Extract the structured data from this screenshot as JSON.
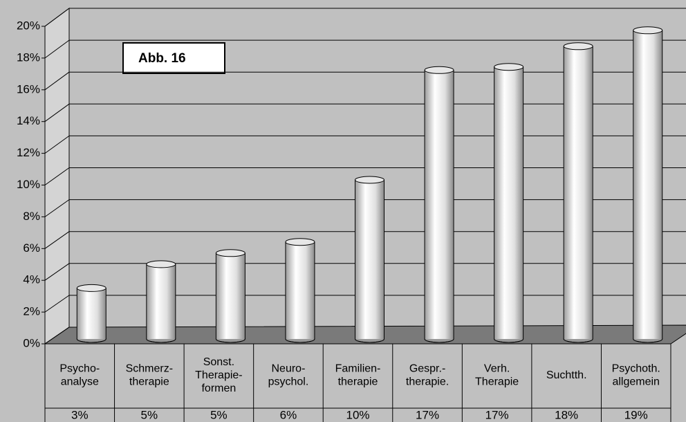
{
  "chart_data": {
    "type": "bar",
    "annotation": "Abb. 16",
    "categories": [
      [
        "Psycho-",
        "analyse"
      ],
      [
        "Schmerz-",
        "therapie"
      ],
      [
        "Sonst.",
        "Therapie-",
        "formen"
      ],
      [
        "Neuro-",
        "psychol."
      ],
      [
        "Familien-",
        "therapie"
      ],
      [
        "Gespr.-",
        "therapie."
      ],
      [
        "Verh.",
        "Therapie"
      ],
      [
        "Suchtth."
      ],
      [
        "Psychoth.",
        "allgemein"
      ]
    ],
    "values": [
      3.2,
      4.7,
      5.4,
      6.1,
      10.0,
      16.9,
      17.1,
      18.4,
      19.4
    ],
    "value_labels": [
      "3%",
      "5%",
      "5%",
      "6%",
      "10%",
      "17%",
      "17%",
      "18%",
      "19%"
    ],
    "color": "#e6e6e6",
    "ylim": [
      0,
      20
    ],
    "yticks": [
      {
        "value": 0,
        "label": "0%"
      },
      {
        "value": 2,
        "label": "2%"
      },
      {
        "value": 4,
        "label": "4%"
      },
      {
        "value": 6,
        "label": "6%"
      },
      {
        "value": 8,
        "label": "8%"
      },
      {
        "value": 10,
        "label": "10%"
      },
      {
        "value": 12,
        "label": "12%"
      },
      {
        "value": 14,
        "label": "14%"
      },
      {
        "value": 16,
        "label": "16%"
      },
      {
        "value": 18,
        "label": "18%"
      },
      {
        "value": 20,
        "label": "20%"
      }
    ],
    "grid": true
  }
}
